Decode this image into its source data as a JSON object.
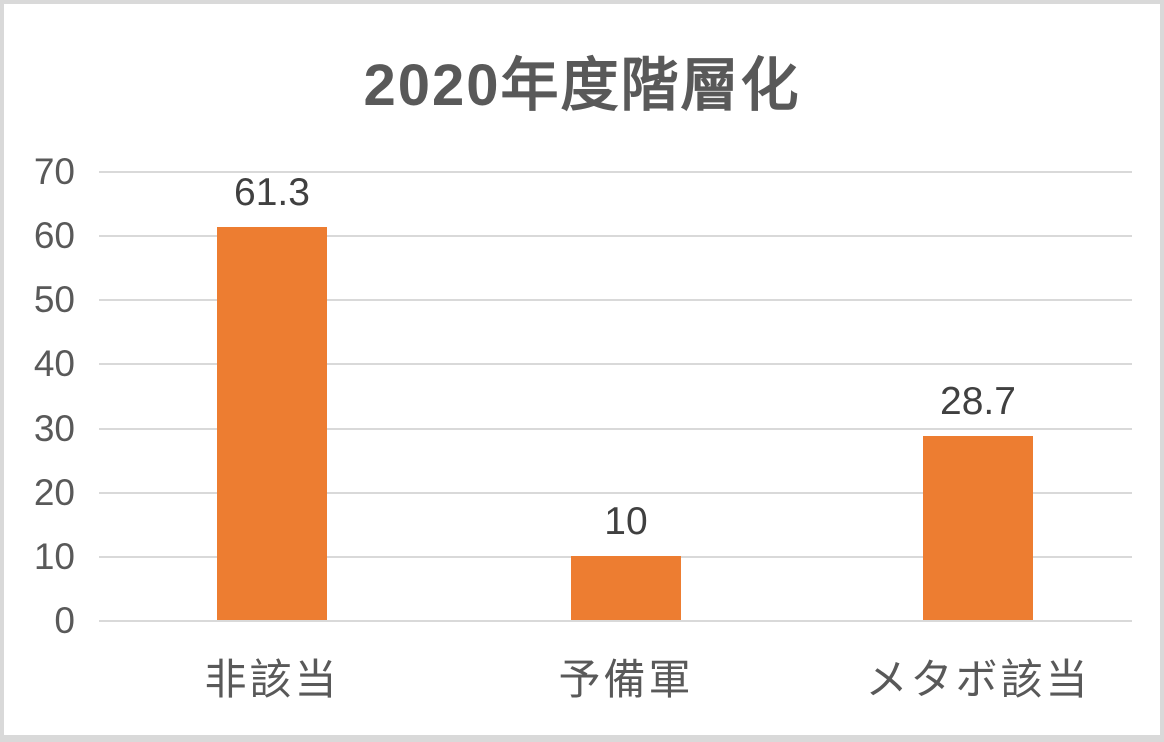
{
  "chart": {
    "y_ticks": [
      "70",
      "60",
      "50",
      "40",
      "30",
      "20",
      "10",
      "0"
    ],
    "colors": {
      "bar": "#ED7D31",
      "text": "#595959",
      "label": "#404040",
      "grid": "#D9D9D9",
      "border": "#D9D9D9",
      "background": "#FFFFFF"
    }
  },
  "chart_data": {
    "type": "bar",
    "title": "2020年度階層化",
    "categories": [
      "非該当",
      "予備軍",
      "メタボ該当"
    ],
    "values": [
      61.3,
      10,
      28.7
    ],
    "labels": [
      "61.3",
      "10",
      "28.7"
    ],
    "xlabel": "",
    "ylabel": "",
    "ylim": [
      0,
      70
    ],
    "ytick_interval": 10,
    "grid": true,
    "legend_position": "none",
    "bar_color": "#ED7D31"
  }
}
